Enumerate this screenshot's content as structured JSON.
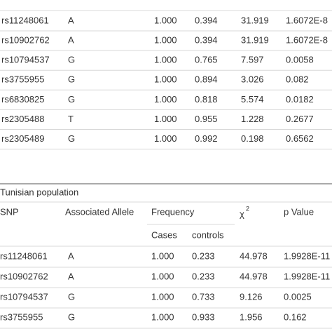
{
  "table_1": {
    "rows": [
      [
        "rs11248061",
        "A",
        "1.000",
        "0.394",
        "31.919",
        "1.6072E-8"
      ],
      [
        "rs10902762",
        "A",
        "1.000",
        "0.394",
        "31.919",
        "1.6072E-8"
      ],
      [
        "rs10794537",
        "G",
        "1.000",
        "0.765",
        "7.597",
        "0.0058"
      ],
      [
        "rs3755955",
        "G",
        "1.000",
        "0.894",
        "3.026",
        "0.082"
      ],
      [
        "rs6830825",
        "G",
        "1.000",
        "0.818",
        "5.574",
        "0.0182"
      ],
      [
        "rs2305488",
        "T",
        "1.000",
        "0.955",
        "1.228",
        "0.2677"
      ],
      [
        "rs2305489",
        "G",
        "1.000",
        "0.992",
        "0.198",
        "0.6562"
      ]
    ]
  },
  "table_2": {
    "caption": "Tunisian population",
    "header": {
      "snp": "SNP",
      "allele": "Associated Allele",
      "frequency": "Frequency",
      "chi": "χ",
      "chi_sup": "2",
      "p": "p Value",
      "cases": "Cases",
      "controls": "controls"
    },
    "rows": [
      [
        "rs11248061",
        "A",
        "1.000",
        "0.233",
        "44.978",
        "1.9928E-11"
      ],
      [
        "rs10902762",
        "A",
        "1.000",
        "0.233",
        "44.978",
        "1.9928E-11"
      ],
      [
        "rs10794537",
        "G",
        "1.000",
        "0.733",
        "9.126",
        "0.0025"
      ],
      [
        "rs3755955",
        "G",
        "1.000",
        "0.933",
        "1.956",
        "0.162"
      ]
    ]
  }
}
